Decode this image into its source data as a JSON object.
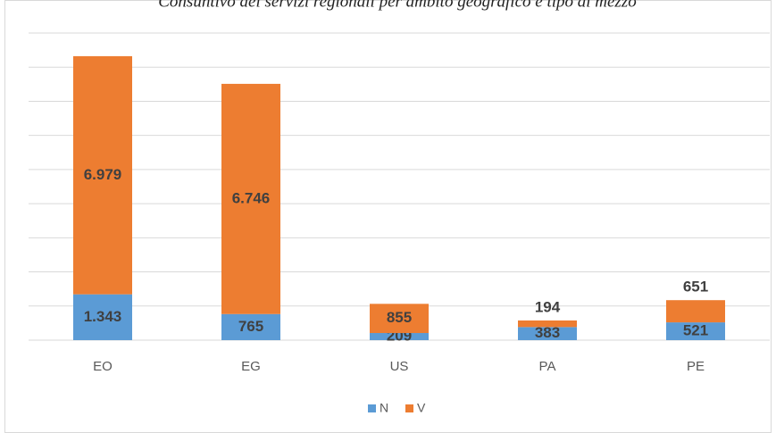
{
  "chart_data": {
    "type": "stacked_bar",
    "title": "Consuntivo dei servizi regionali per ambito geografico e tipo di mezzo",
    "categories": [
      "EO",
      "EG",
      "US",
      "PA",
      "PE"
    ],
    "series": [
      {
        "name": "N",
        "color": "#5b9bd5",
        "values": [
          1343,
          765,
          209,
          383,
          521
        ],
        "value_labels": [
          "1.343",
          "765",
          "209",
          "383",
          "521"
        ]
      },
      {
        "name": "V",
        "color": "#ed7d31",
        "values": [
          6979,
          6746,
          855,
          194,
          651
        ],
        "value_labels": [
          "6.979",
          "6.746",
          "855",
          "194",
          "651"
        ]
      }
    ],
    "ylim": [
      0,
      9000
    ],
    "yticks": [
      0,
      1000,
      2000,
      3000,
      4000,
      5000,
      6000,
      7000,
      8000,
      9000
    ],
    "grid": true,
    "legend": "bottom"
  }
}
